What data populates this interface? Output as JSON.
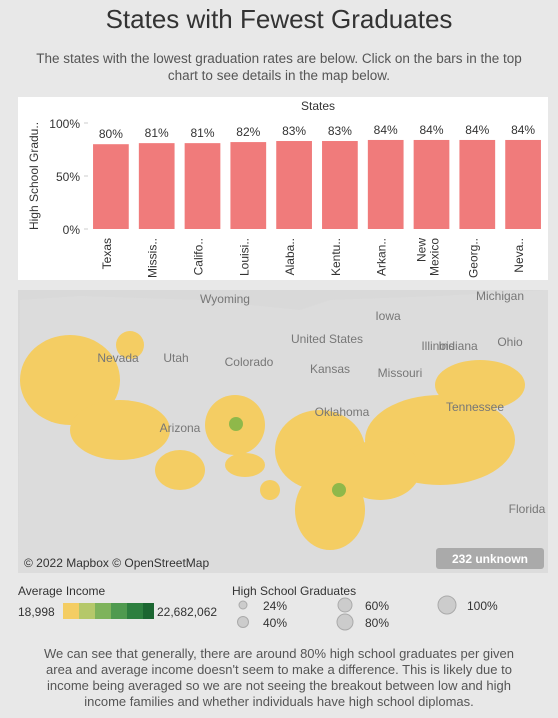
{
  "header": {
    "title": "States with Fewest Graduates",
    "subtitle": "The states with the lowest graduation rates are below. Click on the bars in the top chart to see details in the map below."
  },
  "chart_data": {
    "type": "bar",
    "title": "States",
    "y_label": "High School Gradu..",
    "categories": [
      "Texas",
      "Missis..",
      "Califo..",
      "Louisi..",
      "Alaba..",
      "Kentu..",
      "Arkan..",
      "New Mexico",
      "Georg..",
      "Neva.."
    ],
    "values": [
      80,
      81,
      81,
      82,
      83,
      83,
      84,
      84,
      84,
      84
    ],
    "value_labels": [
      "80%",
      "81%",
      "81%",
      "82%",
      "83%",
      "83%",
      "84%",
      "84%",
      "84%",
      "84%"
    ],
    "color": "#f07b7b",
    "ylim": [
      0,
      100
    ],
    "yticks": [
      {
        "value": 0,
        "label": "0%"
      },
      {
        "value": 50,
        "label": "50%"
      },
      {
        "value": 100,
        "label": "100%"
      }
    ],
    "grid": false
  },
  "map": {
    "labels": [
      "Wyoming",
      "Michigan",
      "Iowa",
      "Nevada",
      "Utah",
      "United States",
      "Illinois",
      "Indiana",
      "Ohio",
      "Colorado",
      "Kansas",
      "Missouri",
      "Oklahoma",
      "Arizona",
      "Tennessee",
      "Florida"
    ],
    "attribution": "© 2022 Mapbox © OpenStreetMap",
    "unknown": "232 unknown"
  },
  "legend": {
    "income_title": "Average Income",
    "income_min": "18,998",
    "income_max": "22,682,062",
    "size_title": "High School Graduates",
    "sizes": [
      "24%",
      "40%",
      "60%",
      "80%",
      "100%"
    ]
  },
  "footer": "We can see that generally, there are around 80% high school graduates per given area and average income doesn't seem to make a difference. This is likely due to income being averaged so we are not seeing the breakout between low and high income families and whether individuals have high school diplomas."
}
